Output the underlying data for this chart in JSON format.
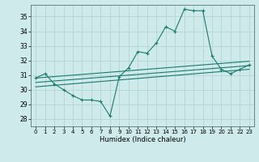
{
  "xlabel": "Humidex (Indice chaleur)",
  "background_color": "#ceeaea",
  "grid_color": "#b8d8d8",
  "line_color": "#1a7a6e",
  "xlim": [
    -0.5,
    23.5
  ],
  "ylim": [
    27.5,
    35.8
  ],
  "xticks": [
    0,
    1,
    2,
    3,
    4,
    5,
    6,
    7,
    8,
    9,
    10,
    11,
    12,
    13,
    14,
    15,
    16,
    17,
    18,
    19,
    20,
    21,
    22,
    23
  ],
  "yticks": [
    28,
    29,
    30,
    31,
    32,
    33,
    34,
    35
  ],
  "main_line": {
    "x": [
      0,
      1,
      2,
      3,
      4,
      5,
      6,
      7,
      8,
      9,
      10,
      11,
      12,
      13,
      14,
      15,
      16,
      17,
      18,
      19,
      20,
      21,
      22,
      23
    ],
    "y": [
      30.8,
      31.1,
      30.4,
      30.0,
      29.6,
      29.3,
      29.3,
      29.2,
      28.2,
      30.9,
      31.5,
      32.6,
      32.5,
      33.2,
      34.3,
      34.0,
      35.5,
      35.4,
      35.4,
      32.3,
      31.4,
      31.1,
      31.4,
      31.7
    ]
  },
  "line2": {
    "x": [
      0,
      23
    ],
    "y": [
      30.8,
      31.95
    ]
  },
  "line3": {
    "x": [
      0,
      23
    ],
    "y": [
      30.5,
      31.65
    ]
  },
  "line4": {
    "x": [
      0,
      23
    ],
    "y": [
      30.2,
      31.4
    ]
  }
}
